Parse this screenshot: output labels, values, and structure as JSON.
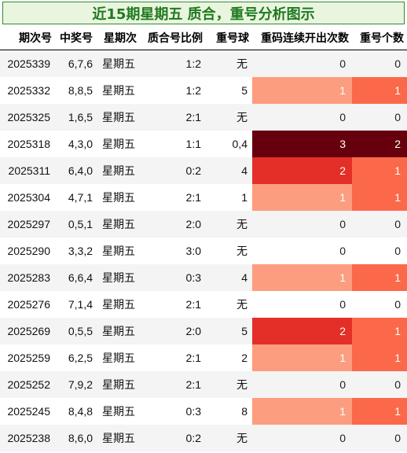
{
  "title": "近15期星期五 质合，重号分析图示",
  "headers": [
    "期次号",
    "中奖号",
    "星期次",
    "质合号比例",
    "重号球",
    "重码连续开出次数",
    "重号个数"
  ],
  "rows": [
    {
      "issue": "2025339",
      "numbers": "6,7,6",
      "weekday": "星期五",
      "ratio": "1:2",
      "repeat_ball": "无",
      "consecutive": 0,
      "repeat_count": 0
    },
    {
      "issue": "2025332",
      "numbers": "8,8,5",
      "weekday": "星期五",
      "ratio": "1:2",
      "repeat_ball": "5",
      "consecutive": 1,
      "repeat_count": 1
    },
    {
      "issue": "2025325",
      "numbers": "1,6,5",
      "weekday": "星期五",
      "ratio": "2:1",
      "repeat_ball": "无",
      "consecutive": 0,
      "repeat_count": 0
    },
    {
      "issue": "2025318",
      "numbers": "4,3,0",
      "weekday": "星期五",
      "ratio": "1:1",
      "repeat_ball": "0,4",
      "consecutive": 3,
      "repeat_count": 2
    },
    {
      "issue": "2025311",
      "numbers": "6,4,0",
      "weekday": "星期五",
      "ratio": "0:2",
      "repeat_ball": "4",
      "consecutive": 2,
      "repeat_count": 1
    },
    {
      "issue": "2025304",
      "numbers": "4,7,1",
      "weekday": "星期五",
      "ratio": "2:1",
      "repeat_ball": "1",
      "consecutive": 1,
      "repeat_count": 1
    },
    {
      "issue": "2025297",
      "numbers": "0,5,1",
      "weekday": "星期五",
      "ratio": "2:0",
      "repeat_ball": "无",
      "consecutive": 0,
      "repeat_count": 0
    },
    {
      "issue": "2025290",
      "numbers": "3,3,2",
      "weekday": "星期五",
      "ratio": "3:0",
      "repeat_ball": "无",
      "consecutive": 0,
      "repeat_count": 0
    },
    {
      "issue": "2025283",
      "numbers": "6,6,4",
      "weekday": "星期五",
      "ratio": "0:3",
      "repeat_ball": "4",
      "consecutive": 1,
      "repeat_count": 1
    },
    {
      "issue": "2025276",
      "numbers": "7,1,4",
      "weekday": "星期五",
      "ratio": "2:1",
      "repeat_ball": "无",
      "consecutive": 0,
      "repeat_count": 0
    },
    {
      "issue": "2025269",
      "numbers": "0,5,5",
      "weekday": "星期五",
      "ratio": "2:0",
      "repeat_ball": "5",
      "consecutive": 2,
      "repeat_count": 1
    },
    {
      "issue": "2025259",
      "numbers": "6,2,5",
      "weekday": "星期五",
      "ratio": "2:1",
      "repeat_ball": "2",
      "consecutive": 1,
      "repeat_count": 1
    },
    {
      "issue": "2025252",
      "numbers": "7,9,2",
      "weekday": "星期五",
      "ratio": "2:1",
      "repeat_ball": "无",
      "consecutive": 0,
      "repeat_count": 0
    },
    {
      "issue": "2025245",
      "numbers": "8,4,8",
      "weekday": "星期五",
      "ratio": "0:3",
      "repeat_ball": "8",
      "consecutive": 1,
      "repeat_count": 1
    },
    {
      "issue": "2025238",
      "numbers": "8,6,0",
      "weekday": "星期五",
      "ratio": "0:2",
      "repeat_ball": "无",
      "consecutive": 0,
      "repeat_count": 0
    }
  ],
  "colors": {
    "consecutive": {
      "1": "#fc9d7f",
      "2": "#e32f27",
      "3": "#67000d"
    },
    "repeat_count": {
      "1": "#fb694a",
      "2": "#67000d"
    },
    "light_text": "#ffffff",
    "dark_text": "#222222"
  }
}
